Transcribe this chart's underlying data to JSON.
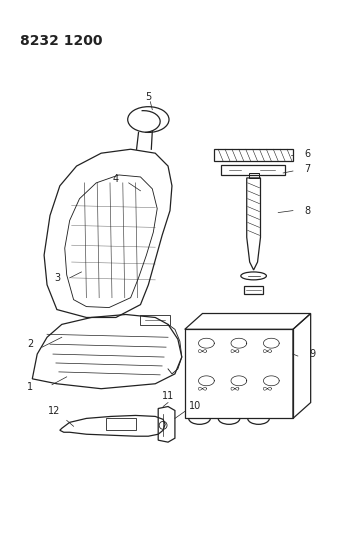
{
  "title": "8232 1200",
  "background_color": "#ffffff",
  "line_color": "#222222",
  "title_fontsize": 10,
  "label_fontsize": 7
}
